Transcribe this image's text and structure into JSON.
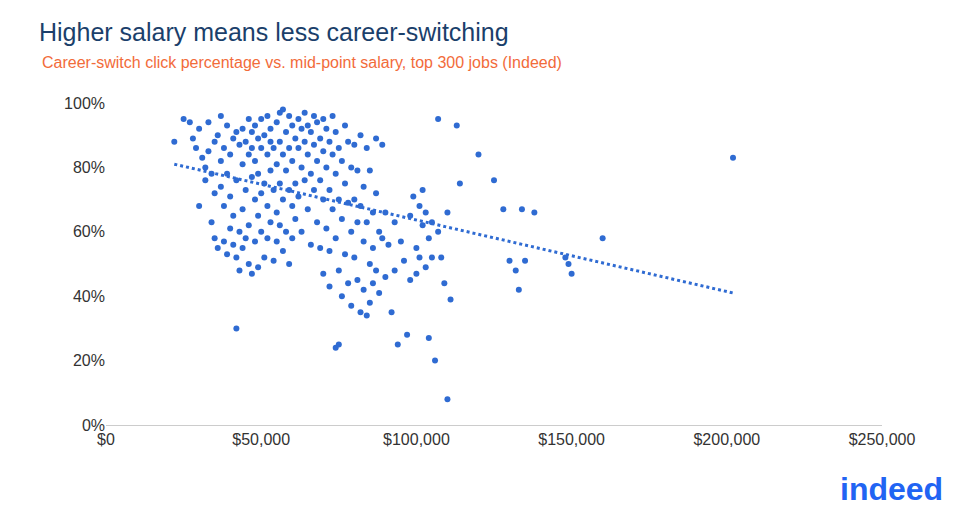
{
  "chart_data": {
    "type": "scatter",
    "title": "Higher salary means less career-switching",
    "subtitle": "Career-switch click percentage vs. mid-point salary, top 300 jobs (Indeed)",
    "annotations": [
      "indeed"
    ],
    "xlim": [
      0,
      250000
    ],
    "xticks": [
      {
        "value": 0,
        "label": "$0"
      },
      {
        "value": 50000,
        "label": "$50,000"
      },
      {
        "value": 100000,
        "label": "$100,000"
      },
      {
        "value": 150000,
        "label": "$150,000"
      },
      {
        "value": 200000,
        "label": "$200,000"
      },
      {
        "value": 250000,
        "label": "$250,000"
      }
    ],
    "ylim": [
      0,
      100
    ],
    "yticks": [
      {
        "value": 0,
        "label": "0%"
      },
      {
        "value": 20,
        "label": "20%"
      },
      {
        "value": 40,
        "label": "40%"
      },
      {
        "value": 60,
        "label": "60%"
      },
      {
        "value": 80,
        "label": "80%"
      },
      {
        "value": 100,
        "label": "100%"
      }
    ],
    "grid": false,
    "series": [
      {
        "type": "scatter",
        "color": "#2f6bd2",
        "marker": "circle",
        "x": [
          22000,
          25000,
          27000,
          28000,
          29000,
          30000,
          30000,
          31000,
          32000,
          32000,
          33000,
          33000,
          34000,
          34000,
          35000,
          35000,
          35000,
          36000,
          36000,
          37000,
          37000,
          37000,
          38000,
          38000,
          38000,
          39000,
          39000,
          39000,
          40000,
          40000,
          40000,
          41000,
          41000,
          41000,
          42000,
          42000,
          42000,
          42000,
          43000,
          43000,
          43000,
          44000,
          44000,
          44000,
          44000,
          45000,
          45000,
          45000,
          46000,
          46000,
          46000,
          46000,
          47000,
          47000,
          47000,
          47000,
          48000,
          48000,
          48000,
          48000,
          49000,
          49000,
          49000,
          49000,
          50000,
          50000,
          50000,
          50000,
          51000,
          51000,
          51000,
          52000,
          52000,
          52000,
          52000,
          53000,
          53000,
          53000,
          53000,
          54000,
          54000,
          54000,
          55000,
          55000,
          55000,
          55000,
          56000,
          56000,
          56000,
          56000,
          57000,
          57000,
          57000,
          57000,
          58000,
          58000,
          58000,
          59000,
          59000,
          59000,
          59000,
          60000,
          60000,
          60000,
          60000,
          61000,
          61000,
          61000,
          62000,
          62000,
          62000,
          63000,
          63000,
          63000,
          64000,
          64000,
          64000,
          65000,
          65000,
          65000,
          66000,
          66000,
          66000,
          67000,
          67000,
          67000,
          68000,
          68000,
          68000,
          69000,
          69000,
          69000,
          70000,
          70000,
          70000,
          70000,
          71000,
          71000,
          71000,
          72000,
          72000,
          72000,
          72000,
          73000,
          73000,
          73000,
          74000,
          74000,
          74000,
          74000,
          75000,
          75000,
          75000,
          75000,
          76000,
          76000,
          76000,
          77000,
          77000,
          77000,
          78000,
          78000,
          78000,
          79000,
          79000,
          79000,
          80000,
          80000,
          80000,
          81000,
          81000,
          81000,
          82000,
          82000,
          82000,
          83000,
          83000,
          83000,
          84000,
          84000,
          84000,
          85000,
          85000,
          85000,
          86000,
          86000,
          86000,
          87000,
          87000,
          87000,
          88000,
          88000,
          89000,
          89000,
          90000,
          90000,
          91000,
          92000,
          93000,
          93000,
          94000,
          95000,
          96000,
          97000,
          98000,
          98000,
          99000,
          100000,
          100000,
          101000,
          101000,
          102000,
          102000,
          103000,
          103000,
          104000,
          104000,
          105000,
          105000,
          106000,
          107000,
          107000,
          108000,
          109000,
          110000,
          110000,
          111000,
          113000,
          114000,
          120000,
          125000,
          128000,
          130000,
          132000,
          133000,
          134000,
          135000,
          138000,
          148000,
          149000,
          150000,
          160000,
          202000
        ],
        "values": [
          88,
          95,
          94,
          89,
          86,
          92,
          68,
          83,
          80,
          76,
          94,
          85,
          78,
          63,
          72,
          58,
          88,
          90,
          55,
          96,
          82,
          74,
          57,
          68,
          86,
          93,
          78,
          53,
          84,
          71,
          61,
          89,
          65,
          56,
          91,
          30,
          76,
          52,
          87,
          60,
          48,
          92,
          81,
          67,
          55,
          88,
          73,
          58,
          95,
          84,
          62,
          50,
          91,
          77,
          86,
          47,
          93,
          70,
          57,
          82,
          89,
          65,
          49,
          78,
          95,
          86,
          72,
          60,
          90,
          75,
          52,
          96,
          84,
          68,
          58,
          92,
          79,
          63,
          88,
          86,
          73,
          51,
          94,
          81,
          66,
          57,
          97,
          88,
          75,
          62,
          98,
          84,
          70,
          54,
          91,
          79,
          60,
          96,
          86,
          73,
          50,
          93,
          82,
          68,
          58,
          89,
          75,
          64,
          95,
          86,
          71,
          92,
          80,
          60,
          97,
          88,
          76,
          93,
          84,
          67,
          91,
          78,
          56,
          96,
          87,
          73,
          94,
          82,
          63,
          89,
          76,
          55,
          95,
          85,
          70,
          47,
          92,
          80,
          61,
          88,
          73,
          54,
          43,
          96,
          84,
          67,
          91,
          78,
          58,
          24,
          86,
          70,
          48,
          25,
          82,
          64,
          40,
          93,
          75,
          53,
          88,
          69,
          44,
          80,
          60,
          37,
          87,
          70,
          52,
          79,
          63,
          45,
          90,
          68,
          35,
          74,
          57,
          42,
          86,
          63,
          34,
          79,
          50,
          38,
          66,
          55,
          44,
          89,
          72,
          48,
          60,
          41,
          87,
          58,
          66,
          46,
          56,
          35,
          63,
          48,
          25,
          57,
          51,
          28,
          65,
          45,
          71,
          55,
          47,
          68,
          52,
          73,
          62,
          66,
          49,
          58,
          27,
          63,
          52,
          20,
          95,
          60,
          52,
          44,
          8,
          66,
          39,
          93,
          75,
          84,
          76,
          67,
          51,
          48,
          42,
          67,
          51,
          66,
          52,
          50,
          47,
          58,
          83
        ]
      },
      {
        "type": "line",
        "color": "#2f6bd2",
        "line_style": "dot",
        "x": [
          22000,
          202000
        ],
        "values": [
          81,
          41
        ]
      }
    ]
  }
}
